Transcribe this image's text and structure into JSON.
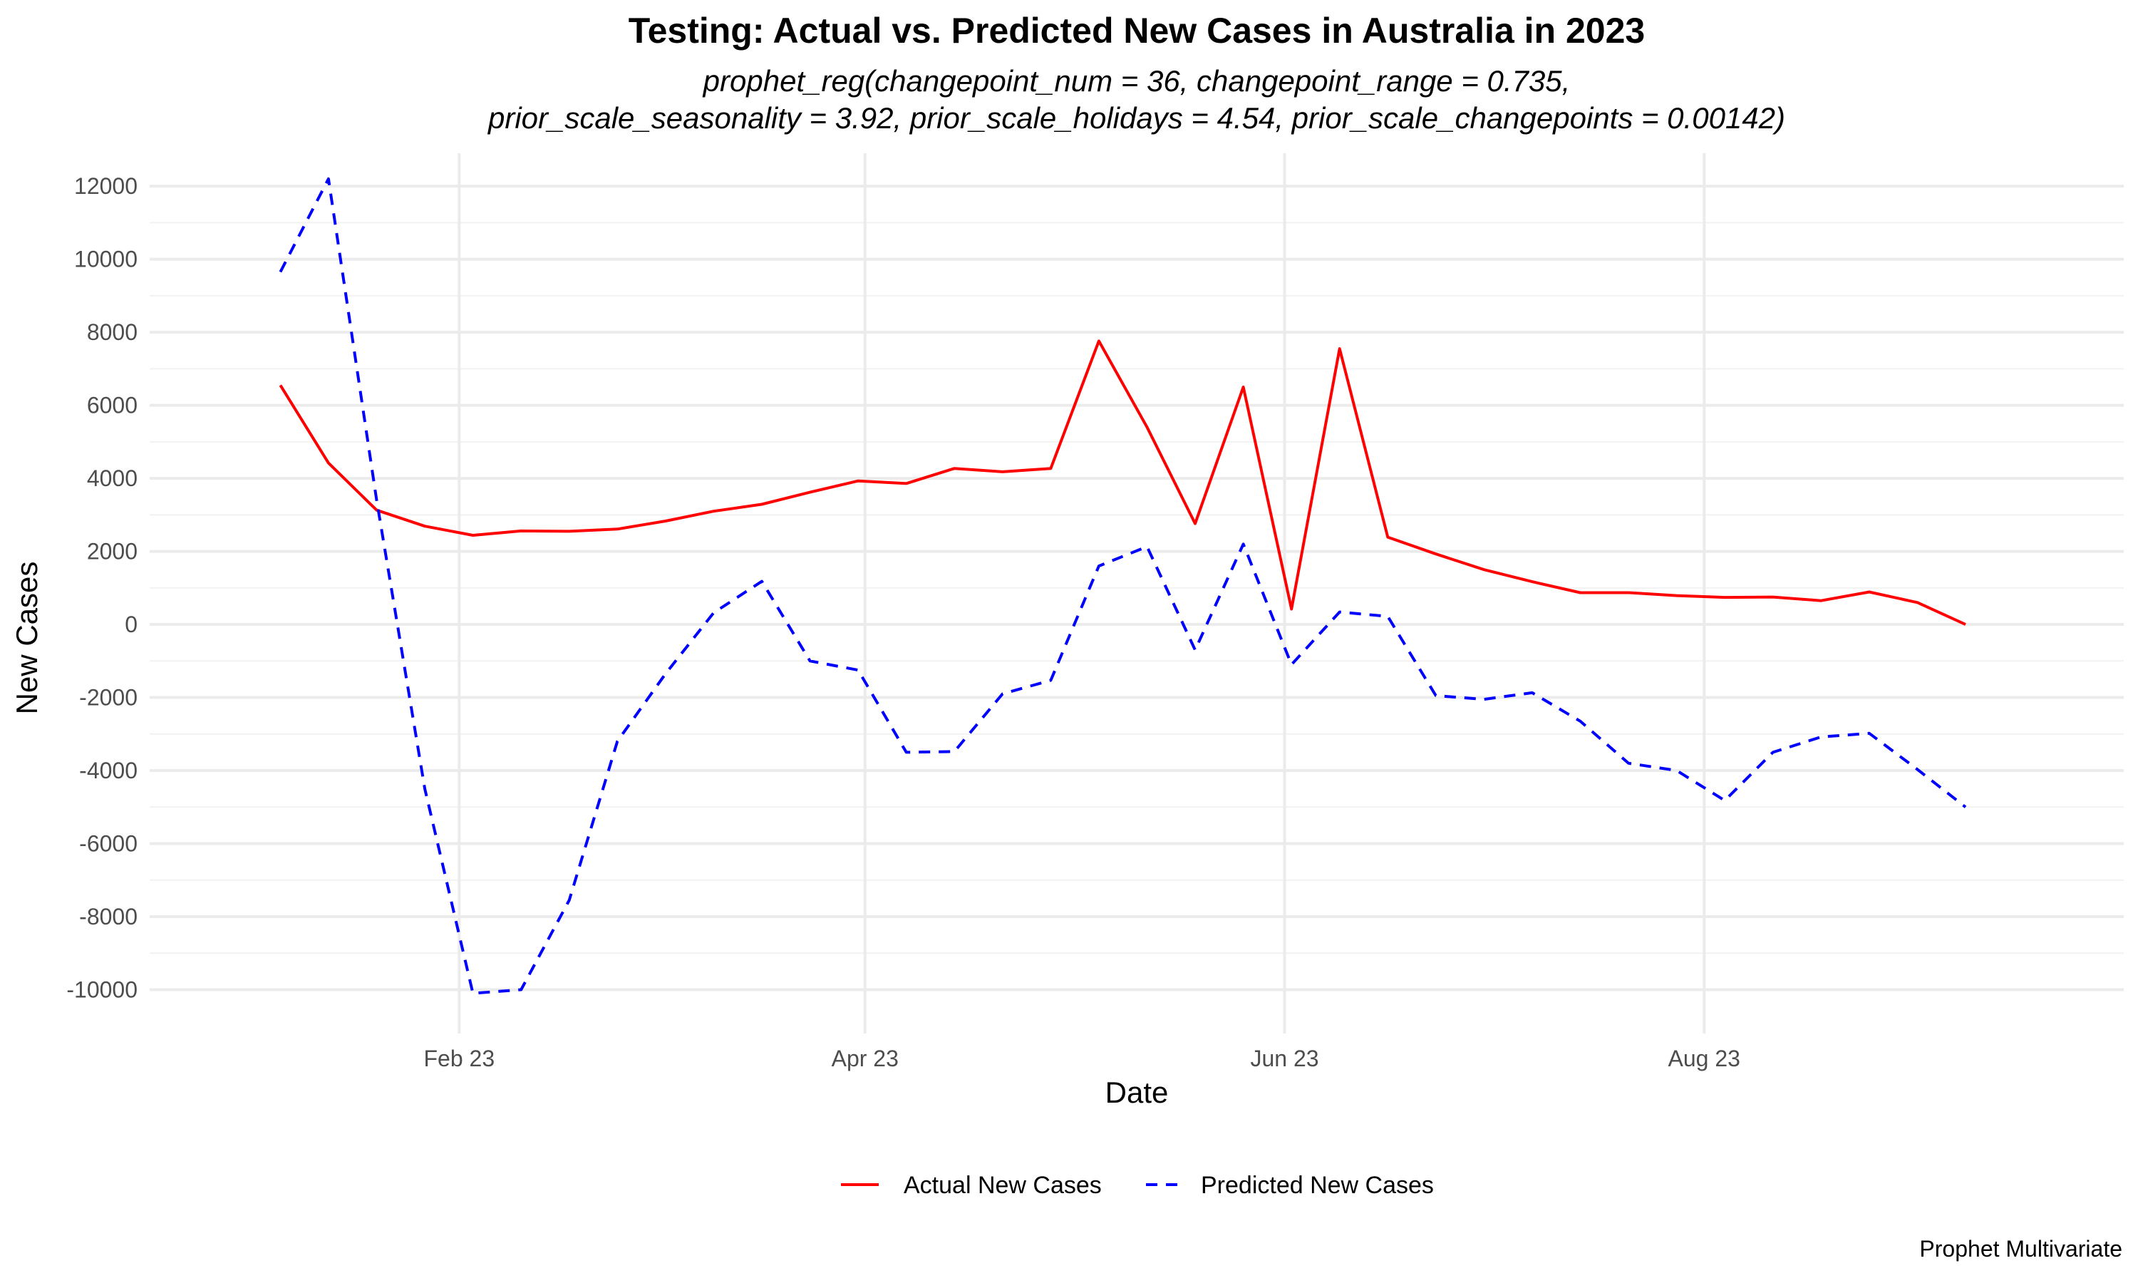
{
  "chart_data": {
    "type": "line",
    "title": "Testing: Actual vs. Predicted New Cases in Australia in 2023",
    "subtitle_lines": [
      "prophet_reg(changepoint_num = 36, changepoint_range = 0.735,",
      "prior_scale_seasonality = 3.92, prior_scale_holidays = 4.54, prior_scale_changepoints = 0.00142)"
    ],
    "xlabel": "Date",
    "ylabel": "New Cases",
    "caption": "Prophet Multivariate",
    "grid": true,
    "legend_position": "bottom",
    "x_ticks": [
      {
        "date": "2023-02-01",
        "label": "Feb 23"
      },
      {
        "date": "2023-04-01",
        "label": "Apr 23"
      },
      {
        "date": "2023-06-01",
        "label": "Jun 23"
      },
      {
        "date": "2023-08-01",
        "label": "Aug 23"
      }
    ],
    "y_ticks": [
      -10000,
      -8000,
      -6000,
      -4000,
      -2000,
      0,
      2000,
      4000,
      6000,
      8000,
      10000,
      12000
    ],
    "xlim": [
      "2022-12-18",
      "2023-10-01"
    ],
    "ylim": [
      -11200,
      12900
    ],
    "x": [
      "2023-01-06",
      "2023-01-13",
      "2023-01-20",
      "2023-01-27",
      "2023-02-03",
      "2023-02-10",
      "2023-02-17",
      "2023-02-24",
      "2023-03-03",
      "2023-03-10",
      "2023-03-17",
      "2023-03-24",
      "2023-03-31",
      "2023-04-07",
      "2023-04-14",
      "2023-04-21",
      "2023-04-28",
      "2023-05-05",
      "2023-05-12",
      "2023-05-19",
      "2023-05-26",
      "2023-06-02",
      "2023-06-09",
      "2023-06-16",
      "2023-06-23",
      "2023-06-30",
      "2023-07-07",
      "2023-07-14",
      "2023-07-21",
      "2023-07-28",
      "2023-08-04",
      "2023-08-11",
      "2023-08-18",
      "2023-08-25",
      "2023-09-01",
      "2023-09-08"
    ],
    "series": [
      {
        "name": "Actual New Cases",
        "color": "#ff0000",
        "dash": "solid",
        "values": [
          6550,
          4420,
          3130,
          2690,
          2440,
          2560,
          2550,
          2610,
          2830,
          3100,
          3290,
          3620,
          3930,
          3860,
          4270,
          4180,
          4270,
          7760,
          5400,
          2760,
          6500,
          420,
          7550,
          2390,
          1930,
          1500,
          1170,
          870,
          870,
          790,
          740,
          750,
          650,
          890,
          600,
          0
        ]
      },
      {
        "name": "Predicted New Cases",
        "color": "#0000ff",
        "dash": "dashed",
        "values": [
          9650,
          12200,
          3400,
          -4500,
          -10100,
          -10000,
          -7550,
          -3200,
          -1350,
          320,
          1180,
          -1000,
          -1250,
          -3500,
          -3480,
          -1900,
          -1530,
          1600,
          2130,
          -700,
          2200,
          -1100,
          340,
          220,
          -1950,
          -2050,
          -1870,
          -2650,
          -3800,
          -4000,
          -4820,
          -3500,
          -3080,
          -2980,
          -3970,
          -5000
        ]
      }
    ]
  }
}
